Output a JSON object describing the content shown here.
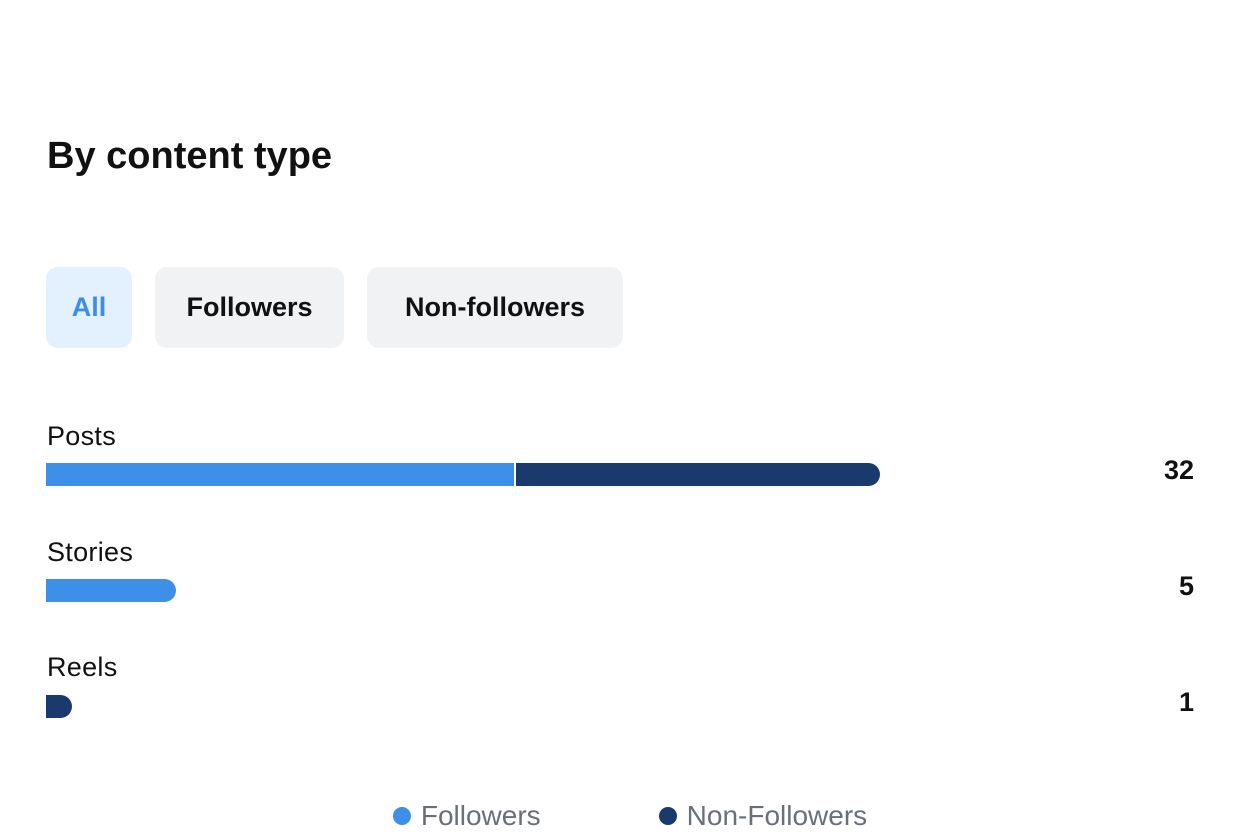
{
  "title": "By content type",
  "filters": [
    {
      "label": "All",
      "active": true
    },
    {
      "label": "Followers",
      "active": false
    },
    {
      "label": "Non-followers",
      "active": false
    }
  ],
  "colors": {
    "followers": "#3d8fe8",
    "non_followers": "#1a3a6e"
  },
  "chart_data": {
    "type": "bar",
    "orientation": "horizontal",
    "stacked": true,
    "categories": [
      "Posts",
      "Stories",
      "Reels"
    ],
    "totals": [
      "32",
      "5",
      "1"
    ],
    "series": [
      {
        "name": "Followers",
        "values": [
          18,
          5,
          0
        ]
      },
      {
        "name": "Non-Followers",
        "values": [
          14,
          0,
          1
        ]
      }
    ],
    "xlim": [
      0,
      40
    ],
    "legend_position": "bottom-center",
    "grid": false
  }
}
